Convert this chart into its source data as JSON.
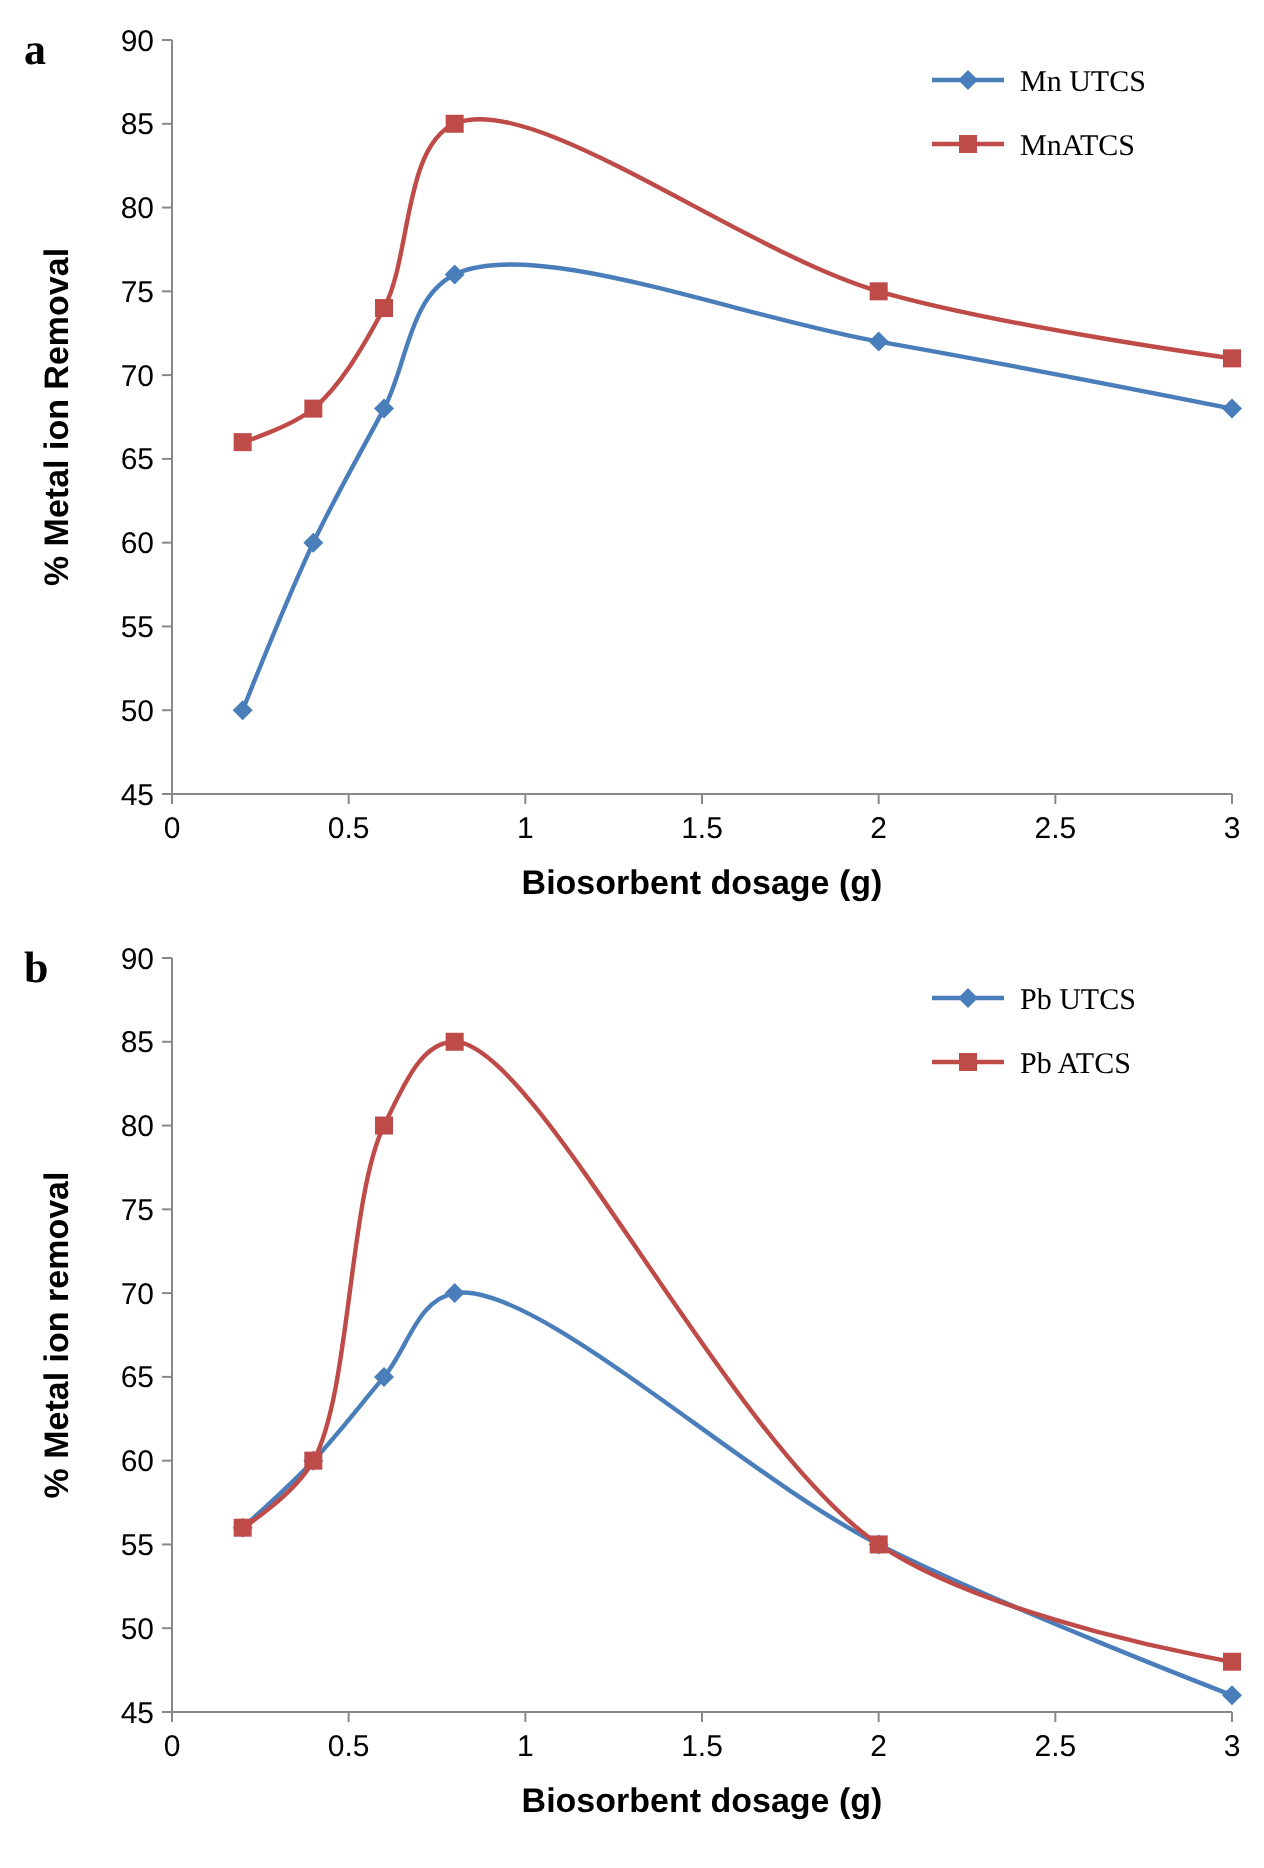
{
  "chart_data": [
    {
      "type": "line",
      "title": "a",
      "xlabel": "Biosorbent dosage (g)",
      "ylabel": "% Metal ion Removal",
      "x": [
        0.2,
        0.4,
        0.6,
        0.8,
        2,
        3
      ],
      "xlim": [
        0,
        3
      ],
      "xticks": [
        0,
        0.5,
        1,
        1.5,
        2,
        2.5,
        3
      ],
      "ylim": [
        45,
        90
      ],
      "yticks": [
        45,
        50,
        55,
        60,
        65,
        70,
        75,
        80,
        85,
        90
      ],
      "legend": "top right",
      "grid": false,
      "series": [
        {
          "name": "Mn UTCS",
          "color": "#4a7ebb",
          "marker": "diamond",
          "values": [
            50,
            60,
            68,
            76,
            72,
            68
          ]
        },
        {
          "name": "MnATCS",
          "color": "#be4b48",
          "marker": "square",
          "values": [
            66,
            68,
            74,
            85,
            75,
            71
          ]
        }
      ]
    },
    {
      "type": "line",
      "title": "b",
      "xlabel": "Biosorbent dosage (g)",
      "ylabel": "% Metal ion removal",
      "x": [
        0.2,
        0.4,
        0.6,
        0.8,
        2,
        3
      ],
      "xlim": [
        0,
        3
      ],
      "xticks": [
        0,
        0.5,
        1,
        1.5,
        2,
        2.5,
        3
      ],
      "ylim": [
        45,
        90
      ],
      "yticks": [
        45,
        50,
        55,
        60,
        65,
        70,
        75,
        80,
        85,
        90
      ],
      "legend": "top right",
      "grid": false,
      "series": [
        {
          "name": "Pb UTCS",
          "color": "#4a7ebb",
          "marker": "diamond",
          "values": [
            56,
            60,
            65,
            70,
            55,
            46
          ]
        },
        {
          "name": "Pb ATCS",
          "color": "#be4b48",
          "marker": "square",
          "values": [
            56,
            60,
            80,
            85,
            55,
            48
          ]
        }
      ]
    }
  ]
}
